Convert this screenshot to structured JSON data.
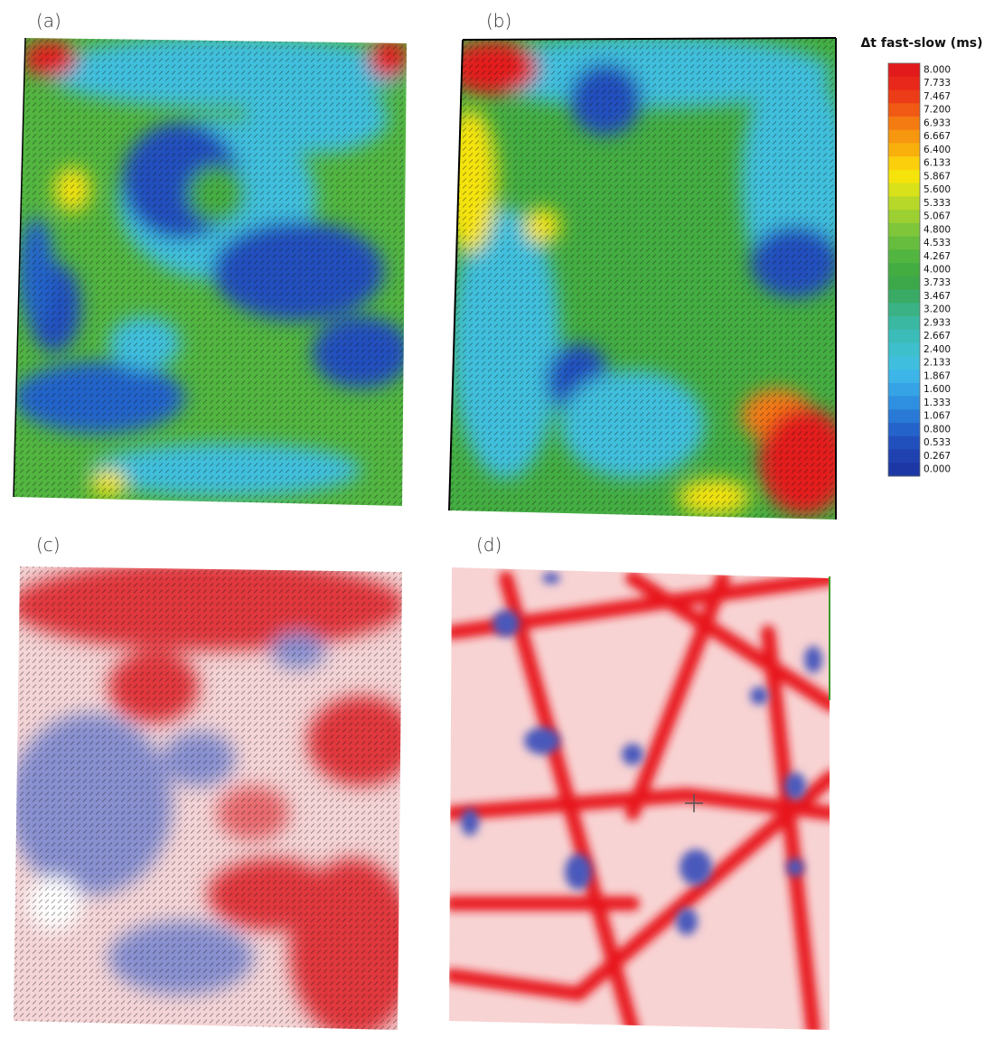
{
  "panels": [
    {
      "label": "(a)"
    },
    {
      "label": "(b)"
    },
    {
      "label": "(c)"
    },
    {
      "label": "(d)"
    }
  ],
  "colorbar": {
    "title": "Δt fast-slow (ms)",
    "entries": [
      {
        "label": "8.000",
        "color": "#e31a1c"
      },
      {
        "label": "7.733",
        "color": "#e8281a"
      },
      {
        "label": "7.467",
        "color": "#ec3c17"
      },
      {
        "label": "7.200",
        "color": "#f05a14"
      },
      {
        "label": "6.933",
        "color": "#f47a12"
      },
      {
        "label": "6.667",
        "color": "#f7960f"
      },
      {
        "label": "6.400",
        "color": "#f9b00d"
      },
      {
        "label": "6.133",
        "color": "#fbcf0b"
      },
      {
        "label": "5.867",
        "color": "#f5e30c"
      },
      {
        "label": "5.600",
        "color": "#d8e11a"
      },
      {
        "label": "5.333",
        "color": "#b7d829"
      },
      {
        "label": "5.067",
        "color": "#9ccf32"
      },
      {
        "label": "4.800",
        "color": "#7fc63a"
      },
      {
        "label": "4.533",
        "color": "#66bd3e"
      },
      {
        "label": "4.267",
        "color": "#52b540"
      },
      {
        "label": "4.000",
        "color": "#44ad42"
      },
      {
        "label": "3.733",
        "color": "#3ca84a"
      },
      {
        "label": "3.467",
        "color": "#3aab66"
      },
      {
        "label": "3.200",
        "color": "#3ab285"
      },
      {
        "label": "2.933",
        "color": "#3ab8a2"
      },
      {
        "label": "2.667",
        "color": "#3cbcb9"
      },
      {
        "label": "2.400",
        "color": "#3ec0cc"
      },
      {
        "label": "2.133",
        "color": "#3fbfdd"
      },
      {
        "label": "1.867",
        "color": "#3db5e8"
      },
      {
        "label": "1.600",
        "color": "#36a3e6"
      },
      {
        "label": "1.333",
        "color": "#2f8fe0"
      },
      {
        "label": "1.067",
        "color": "#2979d6"
      },
      {
        "label": "0.800",
        "color": "#2463ca"
      },
      {
        "label": "0.533",
        "color": "#2150bd"
      },
      {
        "label": "0.267",
        "color": "#1f42b0"
      },
      {
        "label": "0.000",
        "color": "#1d38a5"
      }
    ]
  }
}
